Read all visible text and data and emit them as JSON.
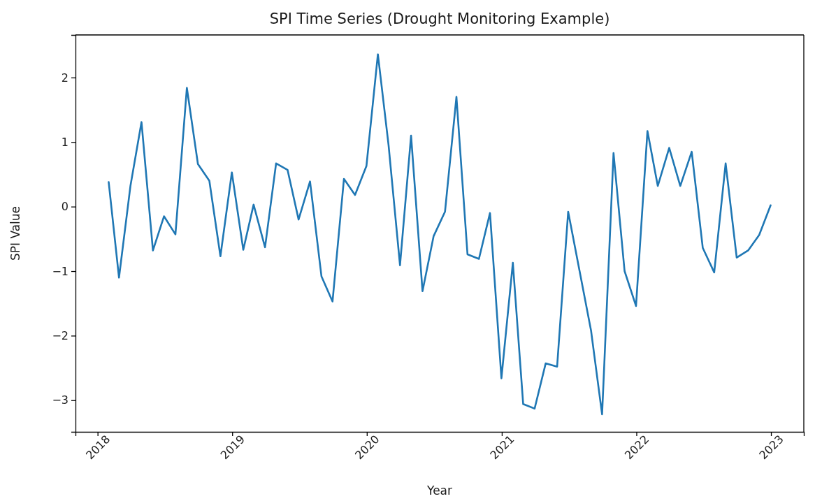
{
  "chart_data": {
    "type": "line",
    "title": "SPI Time Series (Drought Monitoring Example)",
    "xlabel": "Year",
    "ylabel": "SPI Value",
    "x": [
      "2018-01-31",
      "2018-02-28",
      "2018-03-31",
      "2018-04-30",
      "2018-05-31",
      "2018-06-30",
      "2018-07-31",
      "2018-08-31",
      "2018-09-30",
      "2018-10-31",
      "2018-11-30",
      "2018-12-31",
      "2019-01-31",
      "2019-02-28",
      "2019-03-31",
      "2019-04-30",
      "2019-05-31",
      "2019-06-30",
      "2019-07-31",
      "2019-08-31",
      "2019-09-30",
      "2019-10-31",
      "2019-11-30",
      "2019-12-31",
      "2020-01-31",
      "2020-02-29",
      "2020-03-31",
      "2020-04-30",
      "2020-05-31",
      "2020-06-30",
      "2020-07-31",
      "2020-08-31",
      "2020-09-30",
      "2020-10-31",
      "2020-11-30",
      "2020-12-31",
      "2021-01-31",
      "2021-02-28",
      "2021-03-31",
      "2021-04-30",
      "2021-05-31",
      "2021-06-30",
      "2021-07-31",
      "2021-08-31",
      "2021-09-30",
      "2021-10-31",
      "2021-11-30",
      "2021-12-31",
      "2022-01-31",
      "2022-02-28",
      "2022-03-31",
      "2022-04-30",
      "2022-05-31",
      "2022-06-30",
      "2022-07-31",
      "2022-08-31",
      "2022-09-30",
      "2022-10-31",
      "2022-11-30",
      "2022-12-31"
    ],
    "series": [
      {
        "color": "#1f77b4",
        "values": [
          0.38,
          -1.1,
          0.32,
          1.31,
          -0.68,
          -0.15,
          -0.43,
          1.84,
          0.66,
          0.4,
          -0.77,
          0.53,
          -0.67,
          0.03,
          -0.63,
          0.67,
          0.57,
          -0.2,
          0.39,
          -1.08,
          -1.47,
          0.43,
          0.18,
          0.63,
          2.36,
          0.95,
          -0.91,
          1.1,
          -1.31,
          -0.46,
          -0.08,
          1.7,
          -0.74,
          -0.81,
          -0.1,
          -2.66,
          -0.87,
          -3.06,
          -3.13,
          -2.43,
          -2.48,
          -0.08,
          -1.0,
          -1.92,
          -3.22,
          0.83,
          -1.0,
          -1.54,
          1.17,
          0.32,
          0.91,
          0.32,
          0.85,
          -0.64,
          -1.02,
          0.67,
          -0.79,
          -0.68,
          -0.44,
          0.02
        ]
      }
    ],
    "xlim": [
      "2017-11-02",
      "2023-03-31"
    ],
    "xticks": [
      "2018",
      "2019",
      "2020",
      "2021",
      "2022",
      "2023"
    ],
    "ylim": [
      -3.49,
      2.66
    ],
    "yticks": [
      -3,
      -2,
      -1,
      0,
      1,
      2
    ]
  }
}
